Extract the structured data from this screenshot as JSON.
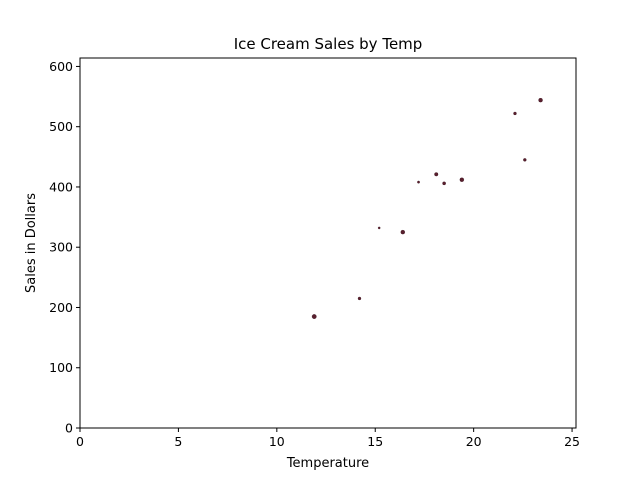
{
  "chart_data": {
    "type": "scatter",
    "title": "Ice Cream Sales by Temp",
    "xlabel": "Temperature",
    "ylabel": "Sales in Dollars",
    "xlim": [
      0,
      25.2
    ],
    "ylim": [
      0,
      614
    ],
    "xticks": [
      0,
      5,
      10,
      15,
      20,
      25
    ],
    "yticks": [
      0,
      100,
      200,
      300,
      400,
      500,
      600
    ],
    "grid": false,
    "marker_color": "#5a1f2e",
    "points": [
      {
        "x": 11.9,
        "y": 185,
        "size": 2.2
      },
      {
        "x": 14.2,
        "y": 215,
        "size": 1.5
      },
      {
        "x": 15.2,
        "y": 332,
        "size": 1.1
      },
      {
        "x": 16.4,
        "y": 325,
        "size": 2.0
      },
      {
        "x": 17.2,
        "y": 408,
        "size": 1.2
      },
      {
        "x": 18.1,
        "y": 421,
        "size": 1.8
      },
      {
        "x": 18.5,
        "y": 406,
        "size": 1.6
      },
      {
        "x": 19.4,
        "y": 412,
        "size": 2.0
      },
      {
        "x": 22.1,
        "y": 522,
        "size": 1.5
      },
      {
        "x": 22.6,
        "y": 445,
        "size": 1.5
      },
      {
        "x": 23.4,
        "y": 544,
        "size": 2.0
      }
    ]
  }
}
